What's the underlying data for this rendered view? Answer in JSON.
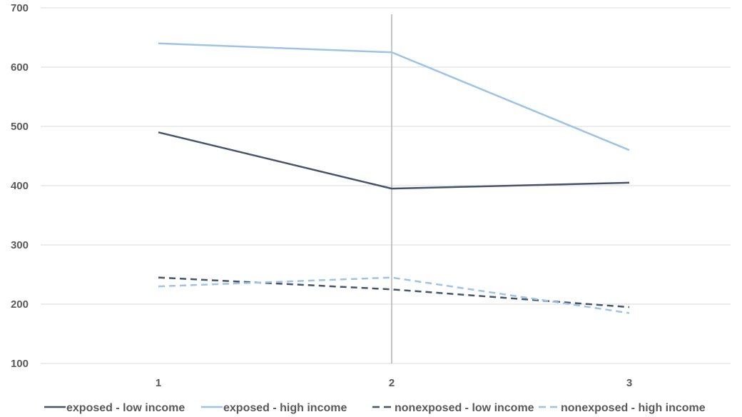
{
  "chart_data": {
    "type": "line",
    "title": "",
    "xlabel": "",
    "ylabel": "",
    "x": [
      1,
      2,
      3
    ],
    "x_tick_labels": [
      "1",
      "2",
      "3"
    ],
    "y_tick_labels": [
      "700",
      "600",
      "500",
      "400",
      "300",
      "200",
      "100"
    ],
    "ylim": [
      100,
      700
    ],
    "ytick_step": 100,
    "grid": "horizontal",
    "reference_line_x": 2,
    "legend_position": "bottom",
    "series": [
      {
        "name": "exposed - low income",
        "values": [
          490,
          395,
          405
        ],
        "color": "#44546a",
        "dash": "solid"
      },
      {
        "name": "exposed - high income",
        "values": [
          640,
          625,
          460
        ],
        "color": "#9dc3e6",
        "dash": "solid"
      },
      {
        "name": "nonexposed - low income",
        "values": [
          245,
          225,
          195
        ],
        "color": "#44546a",
        "dash": "dashed"
      },
      {
        "name": "nonexposed - high income",
        "values": [
          230,
          245,
          185
        ],
        "color": "#9dc3e6",
        "dash": "dashed"
      }
    ],
    "colors": {
      "gridline": "#d9d9d9",
      "reference_line": "#a6a6a6",
      "text": "#595959"
    }
  }
}
